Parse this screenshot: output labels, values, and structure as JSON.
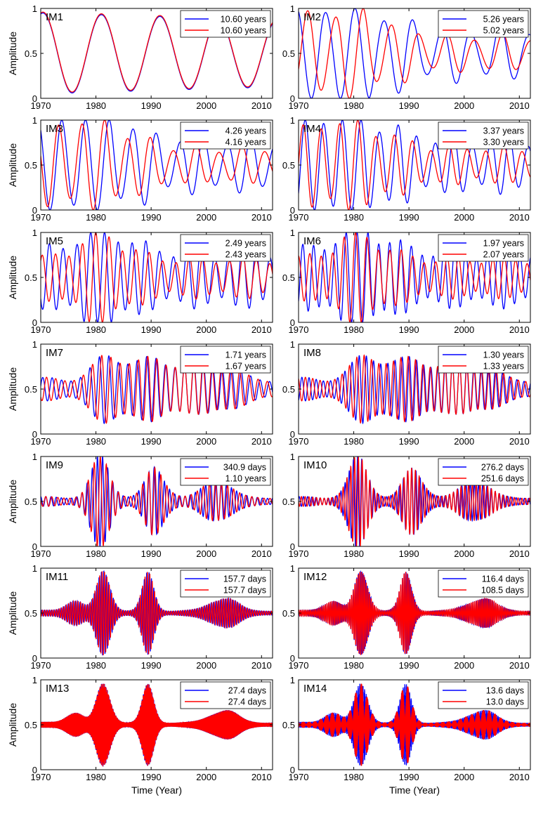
{
  "figure": {
    "ylabel": "Amplitude",
    "xlabel": "Time (Year)"
  },
  "colors": {
    "series1": "#0000ff",
    "series2": "#ff0000"
  },
  "chart_data": [
    {
      "type": "line",
      "title": "IM1",
      "xlim": [
        1970,
        2012
      ],
      "ylim": [
        0,
        1
      ],
      "xticks": [
        1970,
        1980,
        1990,
        2000,
        2010
      ],
      "yticks": [
        0,
        0.5,
        1
      ],
      "ytick_labels": [
        "0",
        "0.5",
        "1"
      ],
      "legend": [
        "10.60 years",
        "10.60 years"
      ],
      "series": [
        {
          "name": "10.60 years",
          "color": "blue"
        },
        {
          "name": "10.60 years",
          "color": "red"
        }
      ],
      "legend_position": "top-right"
    },
    {
      "type": "line",
      "title": "IM2",
      "xlim": [
        1970,
        2012
      ],
      "ylim": [
        0,
        1
      ],
      "xticks": [
        1970,
        1980,
        1990,
        2000,
        2010
      ],
      "yticks": [
        0,
        0.5,
        1
      ],
      "ytick_labels": [
        "0",
        "0.5",
        "1"
      ],
      "legend": [
        "5.26 years",
        "5.02 years"
      ],
      "series": [
        {
          "name": "5.26 years",
          "color": "blue"
        },
        {
          "name": "5.02 years",
          "color": "red"
        }
      ],
      "legend_position": "top-right"
    },
    {
      "type": "line",
      "title": "IM3",
      "xlim": [
        1970,
        2012
      ],
      "ylim": [
        0,
        1
      ],
      "xticks": [
        1970,
        1980,
        1990,
        2000,
        2010
      ],
      "yticks": [
        0,
        0.5,
        1
      ],
      "ytick_labels": [
        "0",
        "0.5",
        "1"
      ],
      "legend": [
        "4.26 years",
        "4.16 years"
      ],
      "series": [
        {
          "name": "4.26 years",
          "color": "blue"
        },
        {
          "name": "4.16 years",
          "color": "red"
        }
      ],
      "legend_position": "top-right"
    },
    {
      "type": "line",
      "title": "IM4",
      "xlim": [
        1970,
        2012
      ],
      "ylim": [
        0,
        1
      ],
      "xticks": [
        1970,
        1980,
        1990,
        2000,
        2010
      ],
      "yticks": [
        0,
        0.5,
        1
      ],
      "ytick_labels": [
        "0",
        "0.5",
        "1"
      ],
      "legend": [
        "3.37 years",
        "3.30 years"
      ],
      "series": [
        {
          "name": "3.37 years",
          "color": "blue"
        },
        {
          "name": "3.30 years",
          "color": "red"
        }
      ],
      "legend_position": "top-right"
    },
    {
      "type": "line",
      "title": "IM5",
      "xlim": [
        1970,
        2012
      ],
      "ylim": [
        0,
        1
      ],
      "xticks": [
        1970,
        1980,
        1990,
        2000,
        2010
      ],
      "yticks": [
        0,
        0.5,
        1
      ],
      "ytick_labels": [
        "0",
        "0.5",
        "1"
      ],
      "legend": [
        "2.49 years",
        "2.43 years"
      ],
      "series": [
        {
          "name": "2.49 years",
          "color": "blue"
        },
        {
          "name": "2.43 years",
          "color": "red"
        }
      ],
      "legend_position": "top-right"
    },
    {
      "type": "line",
      "title": "IM6",
      "xlim": [
        1970,
        2012
      ],
      "ylim": [
        0,
        1
      ],
      "xticks": [
        1970,
        1980,
        1990,
        2000,
        2010
      ],
      "yticks": [
        0,
        0.5,
        1
      ],
      "ytick_labels": [
        "0",
        "0.5",
        "1"
      ],
      "legend": [
        "1.97 years",
        "2.07 years"
      ],
      "series": [
        {
          "name": "1.97 years",
          "color": "blue"
        },
        {
          "name": "2.07 years",
          "color": "red"
        }
      ],
      "legend_position": "top-right"
    },
    {
      "type": "line",
      "title": "IM7",
      "xlim": [
        1970,
        2012
      ],
      "ylim": [
        0,
        1
      ],
      "xticks": [
        1970,
        1980,
        1990,
        2000,
        2010
      ],
      "yticks": [
        0,
        0.5,
        1
      ],
      "ytick_labels": [
        "0",
        "0.5",
        "1"
      ],
      "legend": [
        "1.71 years",
        "1.67 years"
      ],
      "series": [
        {
          "name": "1.71 years",
          "color": "blue"
        },
        {
          "name": "1.67 years",
          "color": "red"
        }
      ],
      "legend_position": "top-right"
    },
    {
      "type": "line",
      "title": "IM8",
      "xlim": [
        1970,
        2012
      ],
      "ylim": [
        0,
        1
      ],
      "xticks": [
        1970,
        1980,
        1990,
        2000,
        2010
      ],
      "yticks": [
        0,
        0.5,
        1
      ],
      "ytick_labels": [
        "0",
        "0.5",
        "1"
      ],
      "legend": [
        "1.30 years",
        "1.33 years"
      ],
      "series": [
        {
          "name": "1.30 years",
          "color": "blue"
        },
        {
          "name": "1.33 years",
          "color": "red"
        }
      ],
      "legend_position": "top-right"
    },
    {
      "type": "line",
      "title": "IM9",
      "xlim": [
        1970,
        2012
      ],
      "ylim": [
        0,
        1
      ],
      "xticks": [
        1970,
        1980,
        1990,
        2000,
        2010
      ],
      "yticks": [
        0,
        0.5,
        1
      ],
      "ytick_labels": [
        "0",
        "0.5",
        "1"
      ],
      "legend": [
        "340.9 days",
        "1.10 years"
      ],
      "series": [
        {
          "name": "340.9 days",
          "color": "blue"
        },
        {
          "name": "1.10 years",
          "color": "red"
        }
      ],
      "legend_position": "top-right"
    },
    {
      "type": "line",
      "title": "IM10",
      "xlim": [
        1970,
        2012
      ],
      "ylim": [
        0,
        1
      ],
      "xticks": [
        1970,
        1980,
        1990,
        2000,
        2010
      ],
      "yticks": [
        0,
        0.5,
        1
      ],
      "ytick_labels": [
        "0",
        "0.5",
        "1"
      ],
      "legend": [
        "276.2 days",
        "251.6 days"
      ],
      "series": [
        {
          "name": "276.2 days",
          "color": "blue"
        },
        {
          "name": "251.6 days",
          "color": "red"
        }
      ],
      "legend_position": "top-right"
    },
    {
      "type": "line",
      "title": "IM11",
      "xlim": [
        1970,
        2012
      ],
      "ylim": [
        0,
        1
      ],
      "xticks": [
        1970,
        1980,
        1990,
        2000,
        2010
      ],
      "yticks": [
        0,
        0.5,
        1
      ],
      "ytick_labels": [
        "0",
        "0.5",
        "1"
      ],
      "legend": [
        "157.7 days",
        "157.7 days"
      ],
      "series": [
        {
          "name": "157.7 days",
          "color": "blue"
        },
        {
          "name": "157.7 days",
          "color": "red"
        }
      ],
      "legend_position": "top-right"
    },
    {
      "type": "line",
      "title": "IM12",
      "xlim": [
        1970,
        2012
      ],
      "ylim": [
        0,
        1
      ],
      "xticks": [
        1970,
        1980,
        1990,
        2000,
        2010
      ],
      "yticks": [
        0,
        0.5,
        1
      ],
      "ytick_labels": [
        "0",
        "0.5",
        "1"
      ],
      "legend": [
        "116.4 days",
        "108.5 days"
      ],
      "series": [
        {
          "name": "116.4 days",
          "color": "blue"
        },
        {
          "name": "108.5 days",
          "color": "red"
        }
      ],
      "legend_position": "top-right"
    },
    {
      "type": "line",
      "title": "IM13",
      "xlim": [
        1970,
        2012
      ],
      "ylim": [
        0,
        1
      ],
      "xticks": [
        1970,
        1980,
        1990,
        2000,
        2010
      ],
      "yticks": [
        0,
        0.5,
        1
      ],
      "ytick_labels": [
        "0",
        "0.5",
        "1"
      ],
      "legend": [
        "27.4 days",
        "27.4 days"
      ],
      "series": [
        {
          "name": "27.4 days",
          "color": "blue"
        },
        {
          "name": "27.4 days",
          "color": "red"
        }
      ],
      "legend_position": "top-right"
    },
    {
      "type": "line",
      "title": "IM14",
      "xlim": [
        1970,
        2012
      ],
      "ylim": [
        0,
        1
      ],
      "xticks": [
        1970,
        1980,
        1990,
        2000,
        2010
      ],
      "yticks": [
        0,
        0.5,
        1
      ],
      "ytick_labels": [
        "0",
        "0.5",
        "1"
      ],
      "legend": [
        "13.6 days",
        "13.0 days"
      ],
      "series": [
        {
          "name": "13.6 days",
          "color": "blue"
        },
        {
          "name": "13.0 days",
          "color": "red"
        }
      ],
      "legend_position": "top-right"
    }
  ]
}
